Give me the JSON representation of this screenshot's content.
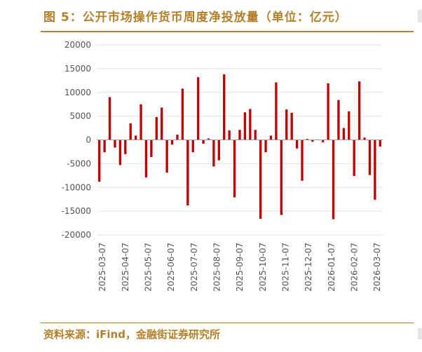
{
  "header": {
    "title": "图 5：公开市场操作货币周度净投放量（单位：亿元）"
  },
  "footer": {
    "source": "资料来源：iFind，金融街证券研究所"
  },
  "chart_data": {
    "type": "bar",
    "title": "图 5：公开市场操作货币周度净投放量（单位：亿元）",
    "xlabel": "",
    "ylabel": "",
    "ylim": [
      -20000,
      20000
    ],
    "yticks": [
      20000,
      15000,
      10000,
      5000,
      0,
      -5000,
      -10000,
      -15000,
      -20000
    ],
    "ytick_labels": [
      "20000",
      "15000",
      "10000",
      "5000",
      "0",
      "-5000",
      "-10000",
      "-15000",
      "-20000"
    ],
    "xtick_labels": [
      "2025-03-07",
      "2025-04-07",
      "2025-05-07",
      "2025-06-07",
      "2025-07-07",
      "2025-08-07",
      "2025-09-07",
      "2025-10-07",
      "2025-11-07",
      "2025-12-07",
      "2026-01-07",
      "2026-02-07",
      "2026-03-07"
    ],
    "grid": true,
    "bar_color": "#c00000",
    "series": [
      {
        "values": [
          -8800,
          -2600,
          9000,
          -1600,
          -5300,
          -3000,
          3500,
          900,
          7500,
          -7900,
          -3600,
          4800,
          6800,
          -6900,
          -1000,
          1100,
          10800,
          -13800,
          -2600,
          13200,
          -800,
          300,
          -5600,
          -4300,
          13800,
          2000,
          -12100,
          2100,
          5800,
          6500,
          2100,
          -16600,
          -2600,
          900,
          12100,
          -15800,
          6400,
          5700,
          -1800,
          -8600,
          200,
          -400,
          100,
          -500,
          11900,
          -16700,
          8400,
          2500,
          6000,
          -7600,
          12300,
          500,
          -7400,
          -12600,
          -1400
        ]
      }
    ]
  }
}
